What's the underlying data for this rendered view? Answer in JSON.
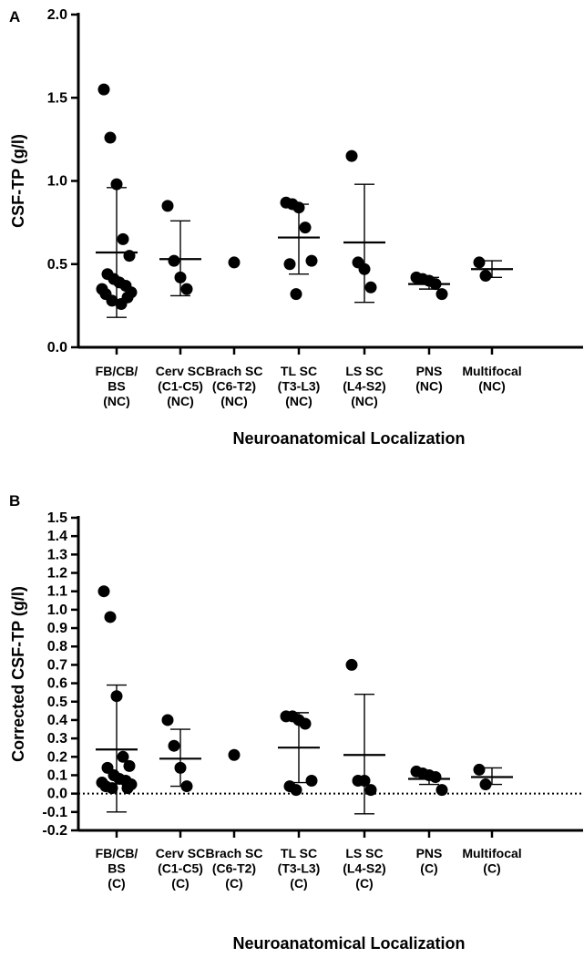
{
  "panels": [
    {
      "letter": "A",
      "chart_data": {
        "type": "scatter",
        "ylabel": "CSF-TP (g/l)",
        "xlabel": "Neuroanatomical Localization",
        "ylim": [
          0,
          2.0
        ],
        "yticks": [
          0.0,
          0.5,
          1.0,
          1.5,
          2.0
        ],
        "ytick_labels": [
          "0.0",
          "0.5",
          "1.0",
          "1.5",
          "2.0"
        ],
        "reference_line": null,
        "categories": [
          {
            "lines": [
              "FB/CB/",
              "BS",
              "(NC)"
            ],
            "mean": 0.57,
            "sd_low": 0.18,
            "sd_high": 0.96,
            "points": [
              1.55,
              1.26,
              0.98,
              0.65,
              0.55,
              0.44,
              0.41,
              0.39,
              0.37,
              0.35,
              0.33,
              0.32,
              0.3,
              0.28,
              0.26
            ]
          },
          {
            "lines": [
              "Cerv SC",
              "(C1-C5)",
              "(NC)"
            ],
            "mean": 0.53,
            "sd_low": 0.31,
            "sd_high": 0.76,
            "points": [
              0.85,
              0.52,
              0.42,
              0.35
            ]
          },
          {
            "lines": [
              "Brach SC",
              "(C6-T2)",
              "(NC)"
            ],
            "mean": null,
            "sd_low": null,
            "sd_high": null,
            "points": [
              0.51
            ]
          },
          {
            "lines": [
              "TL SC",
              "(T3-L3)",
              "(NC)"
            ],
            "mean": 0.66,
            "sd_low": 0.44,
            "sd_high": 0.86,
            "points": [
              0.87,
              0.86,
              0.84,
              0.72,
              0.52,
              0.5,
              0.32
            ]
          },
          {
            "lines": [
              "LS SC",
              "(L4-S2)",
              "(NC)"
            ],
            "mean": 0.63,
            "sd_low": 0.27,
            "sd_high": 0.98,
            "points": [
              1.15,
              0.51,
              0.47,
              0.36
            ]
          },
          {
            "lines": [
              "PNS",
              "(NC)"
            ],
            "mean": 0.38,
            "sd_low": 0.35,
            "sd_high": 0.42,
            "points": [
              0.42,
              0.41,
              0.4,
              0.38,
              0.32
            ]
          },
          {
            "lines": [
              "Multifocal",
              "(NC)"
            ],
            "mean": 0.47,
            "sd_low": 0.42,
            "sd_high": 0.52,
            "points": [
              0.51,
              0.43
            ]
          }
        ]
      }
    },
    {
      "letter": "B",
      "chart_data": {
        "type": "scatter",
        "ylabel": "Corrected CSF-TP (g/l)",
        "xlabel": "Neuroanatomical Localization",
        "ylim": [
          -0.2,
          1.5
        ],
        "yticks": [
          -0.2,
          -0.1,
          0.0,
          0.1,
          0.2,
          0.3,
          0.4,
          0.5,
          0.6,
          0.7,
          0.8,
          0.9,
          1.0,
          1.1,
          1.2,
          1.3,
          1.4,
          1.5
        ],
        "ytick_labels": [
          "-0.2",
          "-0.1",
          "0.0",
          "0.1",
          "0.2",
          "0.3",
          "0.4",
          "0.5",
          "0.6",
          "0.7",
          "0.8",
          "0.9",
          "1.0",
          "1.1",
          "1.2",
          "1.3",
          "1.4",
          "1.5"
        ],
        "reference_line": 0.0,
        "categories": [
          {
            "lines": [
              "FB/CB/",
              "BS",
              "(C)"
            ],
            "mean": 0.24,
            "sd_low": -0.1,
            "sd_high": 0.59,
            "points": [
              1.1,
              0.96,
              0.53,
              0.2,
              0.15,
              0.14,
              0.1,
              0.08,
              0.07,
              0.06,
              0.05,
              0.04,
              0.03,
              0.03
            ]
          },
          {
            "lines": [
              "Cerv SC",
              "(C1-C5)",
              "(C)"
            ],
            "mean": 0.19,
            "sd_low": 0.04,
            "sd_high": 0.35,
            "points": [
              0.4,
              0.26,
              0.14,
              0.04
            ]
          },
          {
            "lines": [
              "Brach SC",
              "(C6-T2)",
              "(C)"
            ],
            "mean": null,
            "sd_low": null,
            "sd_high": null,
            "points": [
              0.21
            ]
          },
          {
            "lines": [
              "TL SC",
              "(T3-L3)",
              "(C)"
            ],
            "mean": 0.25,
            "sd_low": 0.06,
            "sd_high": 0.44,
            "points": [
              0.42,
              0.42,
              0.4,
              0.38,
              0.07,
              0.04,
              0.02
            ]
          },
          {
            "lines": [
              "LS SC",
              "(L4-S2)",
              "(C)"
            ],
            "mean": 0.21,
            "sd_low": -0.11,
            "sd_high": 0.54,
            "points": [
              0.7,
              0.07,
              0.07,
              0.02
            ]
          },
          {
            "lines": [
              "PNS",
              "(C)"
            ],
            "mean": 0.08,
            "sd_low": 0.05,
            "sd_high": 0.11,
            "points": [
              0.12,
              0.11,
              0.1,
              0.09,
              0.02
            ]
          },
          {
            "lines": [
              "Multifocal",
              "(C)"
            ],
            "mean": 0.09,
            "sd_low": 0.05,
            "sd_high": 0.14,
            "points": [
              0.13,
              0.05
            ]
          }
        ]
      }
    }
  ]
}
